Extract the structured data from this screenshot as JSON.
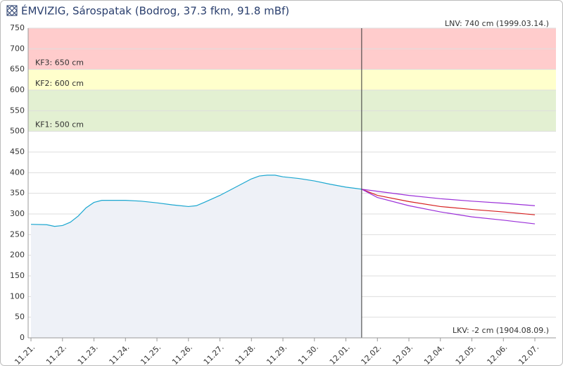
{
  "chart_data": {
    "type": "line",
    "title": "ÉMVIZIG, Sárospatak (Bodrog, 37.3 fkm, 91.8 mBf)",
    "ylim": [
      0,
      750
    ],
    "yticks": [
      0,
      50,
      100,
      150,
      200,
      250,
      300,
      350,
      400,
      450,
      500,
      550,
      600,
      650,
      700,
      750
    ],
    "xlim": [
      -0.09,
      16.67
    ],
    "xticks": [
      {
        "value": 0,
        "label": "11.21."
      },
      {
        "value": 1,
        "label": "11.22."
      },
      {
        "value": 2,
        "label": "11.23."
      },
      {
        "value": 3,
        "label": "11.24."
      },
      {
        "value": 4,
        "label": "11.25."
      },
      {
        "value": 5,
        "label": "11.26."
      },
      {
        "value": 6,
        "label": "11.27."
      },
      {
        "value": 7,
        "label": "11.28."
      },
      {
        "value": 8,
        "label": "11.29."
      },
      {
        "value": 9,
        "label": "11.30."
      },
      {
        "value": 10,
        "label": "12.01."
      },
      {
        "value": 11,
        "label": "12.02."
      },
      {
        "value": 12,
        "label": "12.03."
      },
      {
        "value": 13,
        "label": "12.04."
      },
      {
        "value": 14,
        "label": "12.05."
      },
      {
        "value": 15,
        "label": "12.06."
      },
      {
        "value": 16,
        "label": "12.07."
      }
    ],
    "grid": true,
    "bands": [
      {
        "from": 650,
        "to": 750,
        "color": "#ffcccc",
        "label": "KF3: 650 cm"
      },
      {
        "from": 600,
        "to": 650,
        "color": "#ffffcc",
        "label": "KF2: 600 cm"
      },
      {
        "from": 500,
        "to": 600,
        "color": "#e3f0d2",
        "label": "KF1: 500 cm"
      }
    ],
    "annotations": [
      "LNV: 740 cm (1999.03.14.)",
      "LKV: -2 cm (1904.08.09.)"
    ],
    "now_x": 10.5,
    "series": [
      {
        "color": "#1ba7d0",
        "fill": "#eef1f7",
        "x": [
          0,
          0.5,
          0.75,
          1,
          1.25,
          1.5,
          1.75,
          2,
          2.25,
          2.5,
          3,
          3.5,
          4,
          4.5,
          5,
          5.25,
          5.5,
          6,
          6.5,
          7,
          7.25,
          7.5,
          7.75,
          8,
          8.5,
          9,
          9.5,
          10,
          10.5
        ],
        "values": [
          275,
          274,
          270,
          272,
          280,
          295,
          315,
          328,
          333,
          333,
          333,
          331,
          327,
          322,
          318,
          320,
          328,
          345,
          365,
          385,
          392,
          394,
          394,
          390,
          386,
          380,
          372,
          365,
          360
        ]
      },
      {
        "color": "#9b30d9",
        "x": [
          10.5,
          11,
          12,
          13,
          14,
          15,
          16
        ],
        "values": [
          360,
          355,
          345,
          337,
          331,
          326,
          320
        ]
      },
      {
        "color": "#d62020",
        "x": [
          10.5,
          11,
          12,
          13,
          14,
          15,
          16
        ],
        "values": [
          360,
          345,
          330,
          318,
          311,
          305,
          298
        ]
      },
      {
        "color": "#9b30d9",
        "x": [
          10.5,
          11,
          12,
          13,
          14,
          15,
          16
        ],
        "values": [
          360,
          340,
          320,
          305,
          293,
          285,
          276
        ]
      }
    ]
  }
}
